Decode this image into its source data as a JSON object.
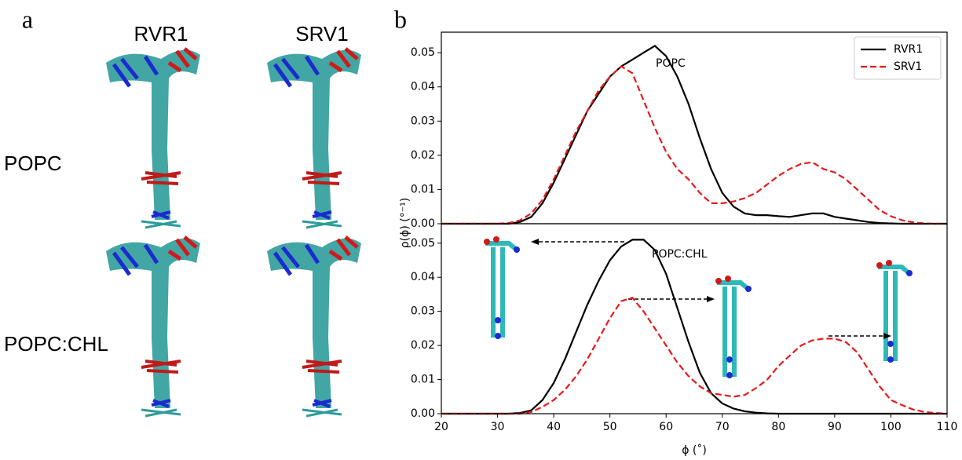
{
  "panel_a": {
    "label": "a",
    "columns": [
      "RVR1",
      "SRV1"
    ],
    "rows": [
      "POPC",
      "POPC:CHL"
    ]
  },
  "panel_b": {
    "label": "b",
    "ylabel": "ρ(ϕ) (°⁻¹)",
    "xlabel": "ϕ (˚)"
  },
  "chart_data": [
    {
      "type": "line",
      "annotation": "POPC",
      "xlim": [
        20,
        110
      ],
      "ylim": [
        0,
        0.056
      ],
      "legend": "upper right",
      "yticks": [
        {
          "value": 0,
          "label": "0.00"
        },
        {
          "value": 0.01,
          "label": "0.01"
        },
        {
          "value": 0.02,
          "label": "0.02"
        },
        {
          "value": 0.03,
          "label": "0.03"
        },
        {
          "value": 0.04,
          "label": "0.04"
        },
        {
          "value": 0.05,
          "label": "0.05"
        }
      ],
      "x": [
        20,
        22,
        24,
        26,
        28,
        30,
        32,
        34,
        36,
        38,
        40,
        42,
        44,
        46,
        48,
        50,
        52,
        54,
        56,
        58,
        60,
        62,
        64,
        66,
        68,
        70,
        72,
        74,
        76,
        78,
        80,
        82,
        84,
        86,
        88,
        90,
        92,
        94,
        96,
        98,
        100,
        102,
        104,
        106,
        108,
        110
      ],
      "series": [
        {
          "name": "RVR1",
          "color": "#000000",
          "dash": false,
          "values": [
            0,
            0,
            0,
            0,
            0,
            0,
            0,
            0.0005,
            0.002,
            0.006,
            0.012,
            0.019,
            0.026,
            0.033,
            0.038,
            0.043,
            0.046,
            0.048,
            0.05,
            0.052,
            0.049,
            0.043,
            0.035,
            0.025,
            0.016,
            0.009,
            0.005,
            0.003,
            0.0025,
            0.0025,
            0.0022,
            0.002,
            0.0025,
            0.003,
            0.003,
            0.002,
            0.0015,
            0.001,
            0.0005,
            0.0002,
            0.0001,
            0,
            0,
            0,
            0,
            0
          ]
        },
        {
          "name": "SRV1",
          "color": "#e8191a",
          "dash": true,
          "values": [
            0,
            0,
            0,
            0,
            0,
            0,
            0.0002,
            0.001,
            0.003,
            0.007,
            0.013,
            0.02,
            0.027,
            0.033,
            0.039,
            0.043,
            0.046,
            0.044,
            0.036,
            0.028,
            0.021,
            0.016,
            0.013,
            0.009,
            0.006,
            0.006,
            0.0065,
            0.0075,
            0.009,
            0.0115,
            0.014,
            0.016,
            0.0175,
            0.018,
            0.016,
            0.015,
            0.013,
            0.01,
            0.007,
            0.004,
            0.0022,
            0.001,
            0.0004,
            0.0001,
            0,
            0
          ]
        }
      ]
    },
    {
      "type": "line",
      "annotation": "POPC:CHL",
      "xlim": [
        20,
        110
      ],
      "ylim": [
        0,
        0.0557
      ],
      "yticks": [
        {
          "value": 0,
          "label": "0.00"
        },
        {
          "value": 0.01,
          "label": "0.01"
        },
        {
          "value": 0.02,
          "label": "0.02"
        },
        {
          "value": 0.03,
          "label": "0.03"
        },
        {
          "value": 0.04,
          "label": "0.04"
        },
        {
          "value": 0.05,
          "label": "0.05"
        }
      ],
      "xticks": [
        20,
        30,
        40,
        50,
        60,
        70,
        80,
        90,
        100,
        110
      ],
      "x": [
        20,
        22,
        24,
        26,
        28,
        30,
        32,
        34,
        36,
        38,
        40,
        42,
        44,
        46,
        48,
        50,
        52,
        54,
        56,
        58,
        60,
        62,
        64,
        66,
        68,
        70,
        72,
        74,
        76,
        78,
        80,
        82,
        84,
        86,
        88,
        90,
        92,
        94,
        96,
        98,
        100,
        102,
        104,
        106,
        108,
        110
      ],
      "series": [
        {
          "color": "#000000",
          "dash": false,
          "values": [
            0,
            0,
            0,
            0,
            0,
            0,
            0,
            0.0002,
            0.001,
            0.004,
            0.009,
            0.016,
            0.024,
            0.032,
            0.039,
            0.045,
            0.049,
            0.051,
            0.051,
            0.048,
            0.041,
            0.031,
            0.021,
            0.012,
            0.006,
            0.003,
            0.0015,
            0.0007,
            0.0003,
            0.0001,
            0,
            0,
            0,
            0,
            0,
            0,
            0,
            0,
            0,
            0,
            0,
            0,
            0,
            0,
            0,
            0
          ]
        },
        {
          "color": "#e8191a",
          "dash": true,
          "values": [
            0,
            0,
            0,
            0,
            0,
            0,
            0,
            0,
            0.0005,
            0.002,
            0.004,
            0.007,
            0.011,
            0.016,
            0.022,
            0.028,
            0.033,
            0.034,
            0.03,
            0.025,
            0.02,
            0.015,
            0.011,
            0.008,
            0.006,
            0.0055,
            0.005,
            0.0055,
            0.0075,
            0.01,
            0.014,
            0.017,
            0.02,
            0.0215,
            0.022,
            0.022,
            0.021,
            0.018,
            0.013,
            0.008,
            0.004,
            0.0025,
            0.0012,
            0.0005,
            0.0002,
            0
          ]
        }
      ]
    }
  ]
}
